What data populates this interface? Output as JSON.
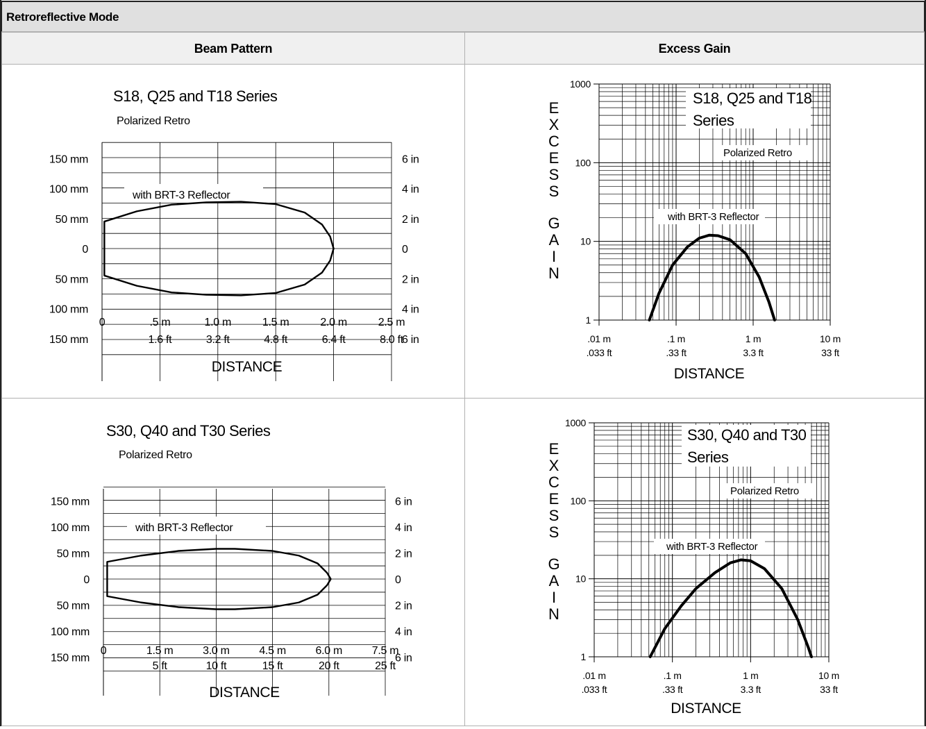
{
  "title": "Retroreflective Mode",
  "headers": {
    "beam": "Beam Pattern",
    "gain": "Excess Gain"
  },
  "chart_data": [
    {
      "id": "beam1",
      "type": "line",
      "series_title": "S18, Q25 and T18 Series",
      "mode_label": "Polarized Retro",
      "reflector_label": "with BRT-3 Reflector",
      "xlabel": "DISTANCE",
      "xlim": [
        0,
        2.5
      ],
      "ylim_mm": [
        -180,
        180
      ],
      "x_ticks": [
        {
          "v": 0,
          "m": "0",
          "ft": ""
        },
        {
          "v": 0.5,
          "m": ".5 m",
          "ft": "1.6 ft"
        },
        {
          "v": 1.0,
          "m": "1.0 m",
          "ft": "3.2 ft"
        },
        {
          "v": 1.5,
          "m": "1.5 m",
          "ft": "4.8 ft"
        },
        {
          "v": 2.0,
          "m": "2.0 m",
          "ft": "6.4 ft"
        },
        {
          "v": 2.5,
          "m": "2.5 m",
          "ft": "8.0  ft"
        }
      ],
      "y_ticks": [
        {
          "v": 150,
          "mm": "150 mm",
          "in": "6 in"
        },
        {
          "v": 100,
          "mm": "100 mm",
          "in": "4 in"
        },
        {
          "v": 50,
          "mm": "50 mm",
          "in": "2 in"
        },
        {
          "v": 0,
          "mm": "0",
          "in": "0"
        },
        {
          "v": -50,
          "mm": "50 mm",
          "in": "2 in"
        },
        {
          "v": -100,
          "mm": "100 mm",
          "in": "4 in"
        },
        {
          "v": -150,
          "mm": "150 mm",
          "in": "6 in"
        }
      ],
      "envelope_upper": [
        [
          0.02,
          45
        ],
        [
          0.3,
          62
        ],
        [
          0.6,
          73
        ],
        [
          0.9,
          77
        ],
        [
          1.2,
          78
        ],
        [
          1.5,
          74
        ],
        [
          1.75,
          60
        ],
        [
          1.9,
          40
        ],
        [
          1.97,
          20
        ],
        [
          2.0,
          0
        ]
      ]
    },
    {
      "id": "beam2",
      "type": "line",
      "series_title": "S30, Q40 and T30 Series",
      "mode_label": "Polarized Retro",
      "reflector_label": "with BRT-3 Reflector",
      "xlabel": "DISTANCE",
      "xlim": [
        0,
        7.5
      ],
      "ylim_mm": [
        -180,
        180
      ],
      "x_ticks": [
        {
          "v": 0,
          "m": "0",
          "ft": ""
        },
        {
          "v": 1.5,
          "m": "1.5 m",
          "ft": "5 ft"
        },
        {
          "v": 3.0,
          "m": "3.0 m",
          "ft": "10 ft"
        },
        {
          "v": 4.5,
          "m": "4.5 m",
          "ft": "15 ft"
        },
        {
          "v": 6.0,
          "m": "6.0 m",
          "ft": "20 ft"
        },
        {
          "v": 7.5,
          "m": "7.5 m",
          "ft": "25 ft"
        }
      ],
      "y_ticks": [
        {
          "v": 150,
          "mm": "150 mm",
          "in": "6 in"
        },
        {
          "v": 100,
          "mm": "100 mm",
          "in": "4 in"
        },
        {
          "v": 50,
          "mm": "50 mm",
          "in": "2 in"
        },
        {
          "v": 0,
          "mm": "0",
          "in": "0"
        },
        {
          "v": -50,
          "mm": "50 mm",
          "in": "2 in"
        },
        {
          "v": -100,
          "mm": "100 mm",
          "in": "4 in"
        },
        {
          "v": -150,
          "mm": "150 mm",
          "in": "6 in"
        }
      ],
      "envelope_upper": [
        [
          0.1,
          33
        ],
        [
          1.0,
          45
        ],
        [
          2.0,
          54
        ],
        [
          3.0,
          58
        ],
        [
          3.5,
          58
        ],
        [
          4.5,
          54
        ],
        [
          5.2,
          45
        ],
        [
          5.7,
          30
        ],
        [
          5.95,
          12
        ],
        [
          6.05,
          0
        ]
      ]
    },
    {
      "id": "gain1",
      "type": "line",
      "series_title_lines": [
        "S18, Q25 and T18",
        "Series"
      ],
      "mode_label": "Polarized Retro",
      "reflector_label": "with BRT-3 Reflector",
      "ylabel": "EXCESS GAIN",
      "xlabel": "DISTANCE",
      "x_scale": "log",
      "y_scale": "log",
      "xlim": [
        0.01,
        10
      ],
      "ylim": [
        1,
        1000
      ],
      "x_ticks": [
        {
          "v": 0.01,
          "m": ".01 m",
          "ft": ".033 ft"
        },
        {
          "v": 0.1,
          "m": ".1 m",
          "ft": ".33 ft"
        },
        {
          "v": 1,
          "m": "1 m",
          "ft": "3.3 ft"
        },
        {
          "v": 10,
          "m": "10 m",
          "ft": "33 ft"
        }
      ],
      "y_ticks": [
        {
          "v": 1000,
          "label": "1000"
        },
        {
          "v": 100,
          "label": "100"
        },
        {
          "v": 10,
          "label": "10"
        },
        {
          "v": 1,
          "label": "1"
        }
      ],
      "curve": [
        [
          0.045,
          1
        ],
        [
          0.06,
          2.2
        ],
        [
          0.09,
          5
        ],
        [
          0.14,
          8.5
        ],
        [
          0.2,
          11
        ],
        [
          0.27,
          12
        ],
        [
          0.35,
          11.8
        ],
        [
          0.5,
          10.5
        ],
        [
          0.8,
          7
        ],
        [
          1.2,
          3.5
        ],
        [
          1.6,
          1.7
        ],
        [
          1.9,
          1
        ]
      ]
    },
    {
      "id": "gain2",
      "type": "line",
      "series_title_lines": [
        "S30, Q40 and T30",
        "Series"
      ],
      "mode_label": "Polarized Retro",
      "reflector_label": "with BRT-3 Reflector",
      "ylabel": "EXCESS GAIN",
      "xlabel": "DISTANCE",
      "x_scale": "log",
      "y_scale": "log",
      "xlim": [
        0.01,
        10
      ],
      "ylim": [
        1,
        1000
      ],
      "x_ticks": [
        {
          "v": 0.01,
          "m": ".01 m",
          "ft": ".033 ft"
        },
        {
          "v": 0.1,
          "m": ".1 m",
          "ft": ".33 ft"
        },
        {
          "v": 1,
          "m": "1 m",
          "ft": "3.3 ft"
        },
        {
          "v": 10,
          "m": "10 m",
          "ft": "33 ft"
        }
      ],
      "y_ticks": [
        {
          "v": 1000,
          "label": "1000"
        },
        {
          "v": 100,
          "label": "100"
        },
        {
          "v": 10,
          "label": "10"
        },
        {
          "v": 1,
          "label": "1"
        }
      ],
      "curve": [
        [
          0.052,
          1
        ],
        [
          0.08,
          2.3
        ],
        [
          0.13,
          4.5
        ],
        [
          0.2,
          7.5
        ],
        [
          0.35,
          12
        ],
        [
          0.55,
          16
        ],
        [
          0.75,
          17.5
        ],
        [
          1.0,
          17
        ],
        [
          1.5,
          13.5
        ],
        [
          2.5,
          7.5
        ],
        [
          4.0,
          3
        ],
        [
          5.5,
          1.3
        ],
        [
          6.0,
          1
        ]
      ]
    }
  ]
}
